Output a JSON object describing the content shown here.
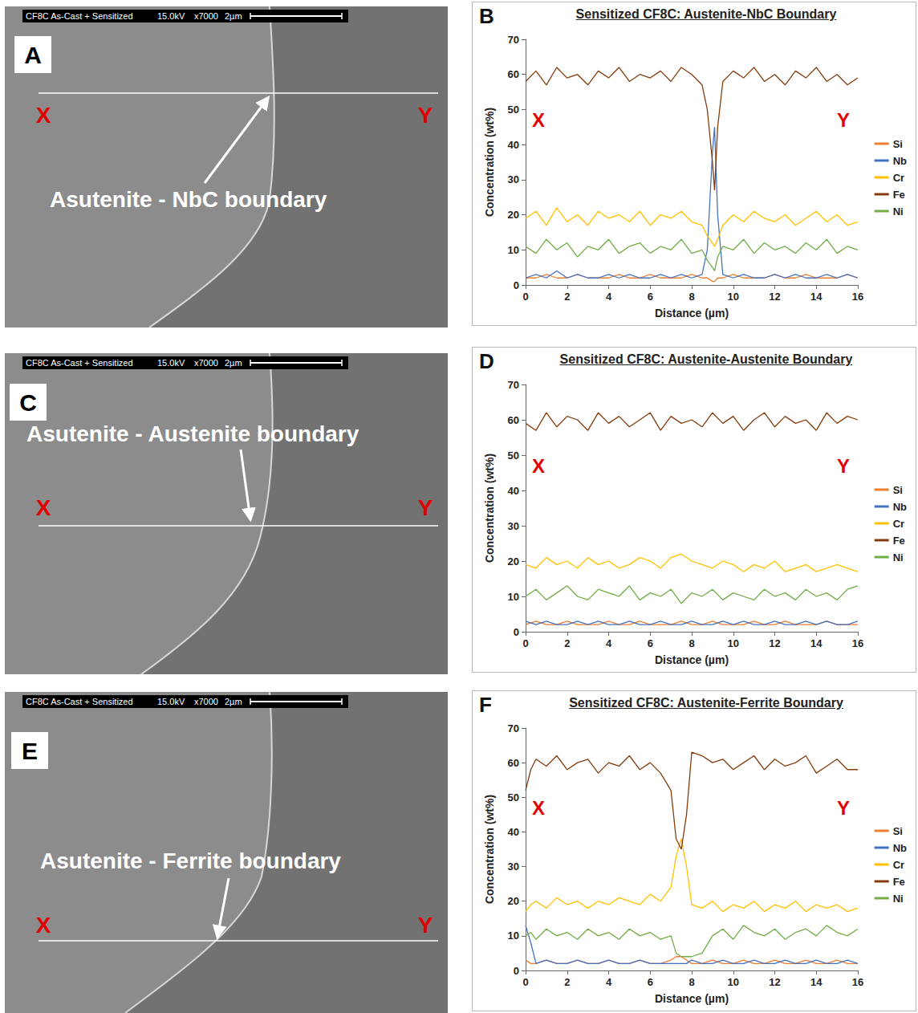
{
  "images": [
    {
      "letter": "A",
      "header": {
        "sample": "CF8C As-Cast + Sensitized",
        "voltage": "15.0kV",
        "magnification": "x7000",
        "scale": "2µm"
      },
      "label": "Asutenite - NbC boundary",
      "markers": [
        "X",
        "Y"
      ]
    },
    {
      "letter": "C",
      "header": {
        "sample": "CF8C As-Cast + Sensitized",
        "voltage": "15.0kV",
        "magnification": "x7000",
        "scale": "2µm"
      },
      "label": "Asutenite - Austenite boundary",
      "markers": [
        "X",
        "Y"
      ]
    },
    {
      "letter": "E",
      "header": {
        "sample": "CF8C As-Cast + Sensitized",
        "voltage": "15.0kV",
        "magnification": "x7000",
        "scale": "2µm"
      },
      "label": "Asutenite - Ferrite boundary",
      "markers": [
        "X",
        "Y"
      ]
    }
  ],
  "chart_data": [
    {
      "type": "line",
      "letter": "B",
      "title": "Sensitized CF8C: Austenite-NbC Boundary",
      "x_label": "Distance (µm)",
      "y_label": "Concentration (wt%)",
      "annotations": [
        "X",
        "Y"
      ],
      "x": [
        0,
        0.5,
        1,
        1.5,
        2,
        2.5,
        3,
        3.5,
        4,
        4.5,
        5,
        5.5,
        6,
        6.5,
        7,
        7.5,
        8,
        8.5,
        8.75,
        9,
        9.1,
        9.25,
        9.5,
        10,
        10.5,
        11,
        11.5,
        12,
        12.5,
        13,
        13.5,
        14,
        14.5,
        15,
        15.5,
        16
      ],
      "series": [
        {
          "name": "Si",
          "color": "#ed7d31",
          "values": [
            2,
            2,
            3,
            2,
            2,
            3,
            2,
            2,
            2,
            3,
            2,
            2,
            3,
            2,
            2,
            2,
            3,
            2,
            2,
            1,
            1,
            2,
            2,
            3,
            2,
            2,
            2,
            3,
            2,
            2,
            3,
            2,
            2,
            2,
            3,
            2
          ]
        },
        {
          "name": "Nb",
          "color": "#4472c4",
          "values": [
            2,
            3,
            2,
            4,
            2,
            3,
            2,
            2,
            3,
            2,
            3,
            2,
            2,
            3,
            2,
            3,
            2,
            3,
            10,
            38,
            45,
            20,
            3,
            2,
            3,
            2,
            2,
            3,
            2,
            3,
            2,
            2,
            3,
            2,
            3,
            2
          ]
        },
        {
          "name": "Cr",
          "color": "#ffc000",
          "values": [
            19,
            21,
            17,
            22,
            18,
            20,
            17,
            21,
            19,
            20,
            18,
            21,
            17,
            20,
            19,
            21,
            18,
            17,
            14,
            12,
            11,
            13,
            17,
            20,
            18,
            21,
            19,
            18,
            20,
            17,
            19,
            21,
            18,
            20,
            17,
            18
          ]
        },
        {
          "name": "Fe",
          "color": "#843c0c",
          "values": [
            58,
            61,
            57,
            62,
            59,
            60,
            57,
            61,
            59,
            62,
            58,
            60,
            59,
            61,
            58,
            62,
            60,
            57,
            50,
            35,
            27,
            45,
            58,
            61,
            59,
            62,
            58,
            60,
            57,
            61,
            59,
            62,
            58,
            60,
            57,
            59
          ]
        },
        {
          "name": "Ni",
          "color": "#70ad47",
          "values": [
            11,
            9,
            13,
            10,
            12,
            8,
            11,
            10,
            13,
            9,
            11,
            12,
            9,
            11,
            10,
            13,
            9,
            10,
            7,
            5,
            4,
            8,
            11,
            10,
            13,
            9,
            12,
            10,
            11,
            9,
            12,
            10,
            13,
            9,
            11,
            10
          ]
        }
      ],
      "xlim": [
        0,
        16
      ],
      "xticks": [
        0,
        2,
        4,
        6,
        8,
        10,
        12,
        14,
        16
      ],
      "ylim": [
        0,
        70
      ],
      "yticks": [
        0,
        10,
        20,
        30,
        40,
        50,
        60,
        70
      ],
      "grid": false,
      "legend": "right"
    },
    {
      "type": "line",
      "letter": "D",
      "title": "Sensitized CF8C: Austenite-Austenite Boundary",
      "x_label": "Distance (µm)",
      "y_label": "Concentration (wt%)",
      "annotations": [
        "X",
        "Y"
      ],
      "x": [
        0,
        0.5,
        1,
        1.5,
        2,
        2.5,
        3,
        3.5,
        4,
        4.5,
        5,
        5.5,
        6,
        6.5,
        7,
        7.5,
        8,
        8.5,
        9,
        9.5,
        10,
        10.5,
        11,
        11.5,
        12,
        12.5,
        13,
        13.5,
        14,
        14.5,
        15,
        15.5,
        16
      ],
      "series": [
        {
          "name": "Si",
          "color": "#ed7d31",
          "values": [
            2,
            3,
            2,
            2,
            3,
            2,
            2,
            2,
            3,
            2,
            2,
            3,
            2,
            2,
            2,
            3,
            2,
            2,
            3,
            2,
            2,
            2,
            3,
            2,
            2,
            3,
            2,
            2,
            2,
            3,
            2,
            2,
            2
          ]
        },
        {
          "name": "Nb",
          "color": "#4472c4",
          "values": [
            3,
            2,
            3,
            2,
            2,
            3,
            2,
            3,
            2,
            2,
            3,
            2,
            2,
            3,
            2,
            2,
            3,
            2,
            2,
            3,
            2,
            3,
            2,
            2,
            3,
            2,
            2,
            3,
            2,
            3,
            2,
            2,
            3
          ]
        },
        {
          "name": "Cr",
          "color": "#ffc000",
          "values": [
            19,
            18,
            21,
            19,
            20,
            18,
            21,
            19,
            20,
            18,
            19,
            21,
            20,
            18,
            21,
            22,
            20,
            19,
            18,
            20,
            19,
            17,
            19,
            18,
            20,
            17,
            18,
            19,
            17,
            18,
            19,
            18,
            17
          ]
        },
        {
          "name": "Fe",
          "color": "#843c0c",
          "values": [
            59,
            57,
            62,
            58,
            61,
            60,
            57,
            62,
            59,
            61,
            58,
            60,
            62,
            57,
            61,
            59,
            60,
            58,
            62,
            59,
            61,
            57,
            60,
            62,
            58,
            61,
            59,
            60,
            57,
            62,
            59,
            61,
            60
          ]
        },
        {
          "name": "Ni",
          "color": "#70ad47",
          "values": [
            10,
            12,
            9,
            11,
            13,
            10,
            9,
            12,
            11,
            10,
            13,
            9,
            11,
            10,
            12,
            8,
            11,
            10,
            12,
            9,
            11,
            10,
            9,
            12,
            10,
            11,
            9,
            12,
            10,
            11,
            9,
            12,
            13
          ]
        }
      ],
      "xlim": [
        0,
        16
      ],
      "xticks": [
        0,
        2,
        4,
        6,
        8,
        10,
        12,
        14,
        16
      ],
      "ylim": [
        0,
        70
      ],
      "yticks": [
        0,
        10,
        20,
        30,
        40,
        50,
        60,
        70
      ],
      "grid": false,
      "legend": "right"
    },
    {
      "type": "line",
      "letter": "F",
      "title": "Sensitized CF8C: Austenite-Ferrite Boundary",
      "x_label": "Distance (µm)",
      "y_label": "Concentration (wt%)",
      "annotations": [
        "X",
        "Y"
      ],
      "x": [
        0,
        0.25,
        0.5,
        1,
        1.5,
        2,
        2.5,
        3,
        3.5,
        4,
        4.5,
        5,
        5.5,
        6,
        6.5,
        7,
        7.25,
        7.5,
        7.75,
        8,
        8.5,
        9,
        9.5,
        10,
        10.5,
        11,
        11.5,
        12,
        12.5,
        13,
        13.5,
        14,
        14.5,
        15,
        15.5,
        16
      ],
      "series": [
        {
          "name": "Si",
          "color": "#ed7d31",
          "values": [
            3,
            2,
            2,
            3,
            2,
            2,
            3,
            2,
            2,
            3,
            2,
            2,
            3,
            2,
            2,
            3,
            4,
            4,
            3,
            2,
            2,
            3,
            2,
            2,
            3,
            2,
            2,
            3,
            2,
            2,
            3,
            2,
            2,
            3,
            2,
            2
          ]
        },
        {
          "name": "Nb",
          "color": "#4472c4",
          "values": [
            13,
            8,
            2,
            3,
            2,
            2,
            3,
            2,
            2,
            3,
            2,
            2,
            3,
            2,
            2,
            2,
            2,
            2,
            2,
            3,
            2,
            2,
            3,
            2,
            2,
            3,
            2,
            2,
            3,
            2,
            2,
            3,
            2,
            2,
            3,
            2
          ]
        },
        {
          "name": "Cr",
          "color": "#ffc000",
          "values": [
            17,
            19,
            20,
            18,
            21,
            19,
            20,
            18,
            20,
            19,
            21,
            20,
            19,
            22,
            20,
            24,
            33,
            38,
            30,
            19,
            18,
            20,
            17,
            19,
            18,
            20,
            17,
            19,
            18,
            20,
            17,
            19,
            18,
            19,
            17,
            18
          ]
        },
        {
          "name": "Fe",
          "color": "#843c0c",
          "values": [
            52,
            58,
            61,
            59,
            62,
            58,
            60,
            61,
            57,
            60,
            59,
            62,
            58,
            60,
            57,
            52,
            38,
            35,
            45,
            63,
            62,
            60,
            61,
            58,
            60,
            62,
            58,
            61,
            59,
            60,
            62,
            57,
            59,
            61,
            58,
            58
          ]
        },
        {
          "name": "Ni",
          "color": "#70ad47",
          "values": [
            10,
            11,
            9,
            12,
            10,
            11,
            9,
            12,
            10,
            11,
            9,
            12,
            10,
            11,
            9,
            10,
            5,
            4,
            4,
            4,
            5,
            10,
            12,
            9,
            13,
            11,
            10,
            12,
            9,
            11,
            12,
            10,
            13,
            11,
            10,
            12
          ]
        }
      ],
      "xlim": [
        0,
        16
      ],
      "xticks": [
        0,
        2,
        4,
        6,
        8,
        10,
        12,
        14,
        16
      ],
      "ylim": [
        0,
        70
      ],
      "yticks": [
        0,
        10,
        20,
        30,
        40,
        50,
        60,
        70
      ],
      "grid": false,
      "legend": "right"
    }
  ]
}
